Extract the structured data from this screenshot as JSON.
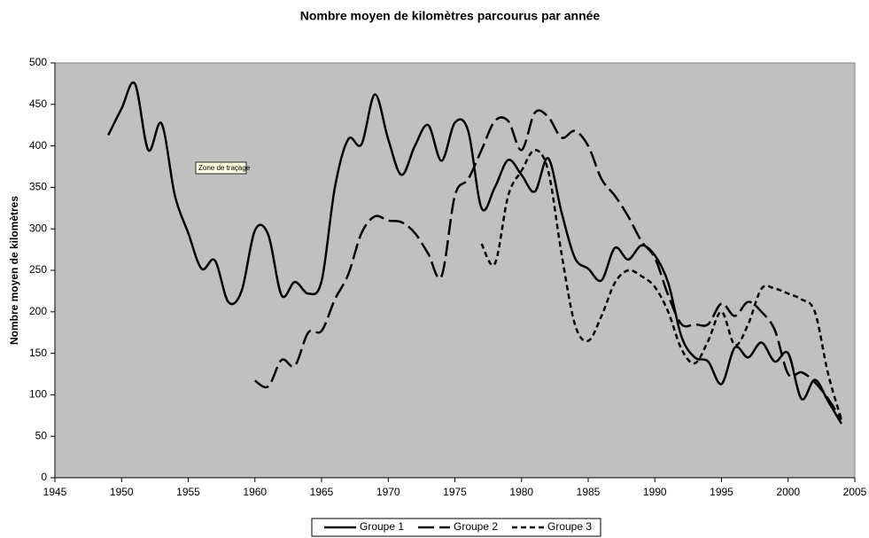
{
  "chart_data": {
    "type": "line",
    "title": "Nombre moyen de kilomètres parcourus par année",
    "y_label": "Nombre moyen de kilomètres",
    "annotation": "Zone de traçage",
    "x": [
      1949,
      1950,
      1951,
      1952,
      1953,
      1954,
      1955,
      1956,
      1957,
      1958,
      1959,
      1960,
      1961,
      1962,
      1963,
      1964,
      1965,
      1966,
      1967,
      1968,
      1969,
      1970,
      1971,
      1972,
      1973,
      1974,
      1975,
      1976,
      1977,
      1978,
      1979,
      1980,
      1981,
      1982,
      1983,
      1984,
      1985,
      1986,
      1987,
      1988,
      1989,
      1990,
      1991,
      1992,
      1993,
      1994,
      1995,
      1996,
      1997,
      1998,
      1999,
      2000,
      2001,
      2002,
      2003,
      2004
    ],
    "series": [
      {
        "name": "Groupe 1",
        "color": "#000000",
        "dash": "none",
        "values": [
          413,
          445,
          475,
          395,
          427,
          340,
          295,
          252,
          262,
          212,
          225,
          298,
          293,
          220,
          236,
          222,
          237,
          350,
          408,
          402,
          462,
          408,
          365,
          400,
          425,
          382,
          428,
          418,
          325,
          350,
          383,
          365,
          345,
          385,
          320,
          265,
          252,
          238,
          277,
          263,
          280,
          268,
          235,
          170,
          145,
          140,
          113,
          157,
          145,
          163,
          140,
          150,
          95,
          118,
          92,
          65
        ]
      },
      {
        "name": "Groupe 2",
        "color": "#000000",
        "dash": "18,6",
        "values": [
          null,
          null,
          null,
          null,
          null,
          null,
          null,
          null,
          null,
          null,
          null,
          117,
          110,
          142,
          135,
          175,
          177,
          215,
          245,
          295,
          315,
          310,
          308,
          295,
          270,
          243,
          340,
          360,
          395,
          430,
          430,
          395,
          440,
          435,
          410,
          418,
          400,
          360,
          340,
          315,
          285,
          265,
          220,
          185,
          185,
          185,
          210,
          195,
          212,
          200,
          178,
          125,
          127,
          115,
          95,
          70
        ]
      },
      {
        "name": "Groupe 3",
        "color": "#000000",
        "dash": "6,4",
        "values": [
          null,
          null,
          null,
          null,
          null,
          null,
          null,
          null,
          null,
          null,
          null,
          null,
          null,
          null,
          null,
          null,
          null,
          null,
          null,
          null,
          null,
          null,
          null,
          null,
          null,
          null,
          null,
          null,
          282,
          258,
          340,
          370,
          395,
          370,
          270,
          185,
          165,
          195,
          235,
          250,
          243,
          230,
          200,
          155,
          138,
          165,
          200,
          160,
          185,
          228,
          228,
          222,
          215,
          200,
          125,
          70
        ]
      }
    ],
    "xlim": [
      1945,
      2005
    ],
    "xticks": [
      1945,
      1950,
      1955,
      1960,
      1965,
      1970,
      1975,
      1980,
      1985,
      1990,
      1995,
      2000,
      2005
    ],
    "ylim": [
      0,
      500
    ],
    "yticks": [
      0,
      50,
      100,
      150,
      200,
      250,
      300,
      350,
      400,
      450,
      500
    ],
    "grid": false,
    "legend": "bottom",
    "background": "#c0c0c0"
  }
}
